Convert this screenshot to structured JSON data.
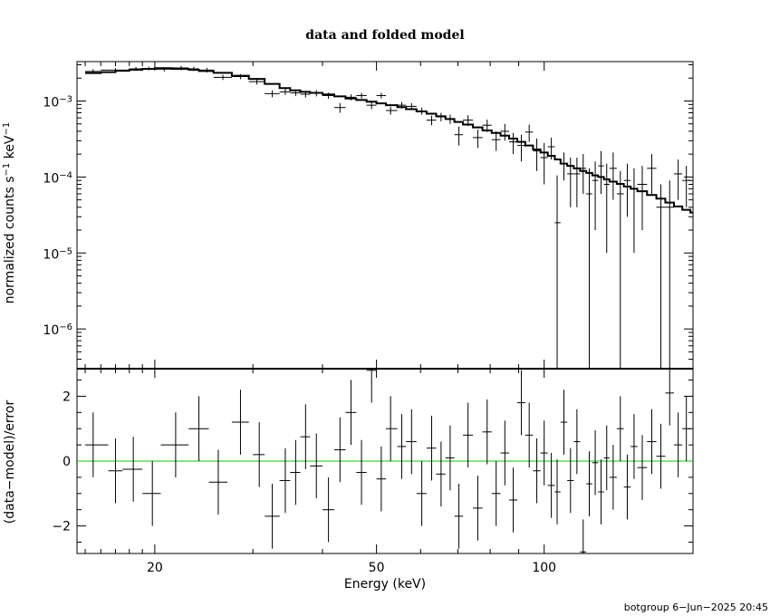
{
  "chart_data": [
    {
      "type": "scatter",
      "title": "data and folded model",
      "xlabel": "Energy (keV)",
      "ylabel_main": "normalized counts s",
      "ylabel_sup1": "−1",
      "ylabel_mid": " keV",
      "ylabel_sup2": "−1",
      "x_scale": "log",
      "y_scale": "log",
      "xlim": [
        14.5,
        185
      ],
      "ylim": [
        3e-07,
        0.0033
      ],
      "y_ticks": [
        {
          "label": "10",
          "exp": "−3",
          "value": 0.001
        },
        {
          "label": "10",
          "exp": "−4",
          "value": 0.0001
        },
        {
          "label": "10",
          "exp": "−5",
          "value": 1e-05
        },
        {
          "label": "10",
          "exp": "−6",
          "value": 1e-06
        }
      ],
      "series": [
        {
          "color": "#000000",
          "points": [
            [
              15.5,
              0.00245,
              0.00017,
              15,
              16
            ],
            [
              17,
              0.00255,
              0.00015,
              16,
              18
            ],
            [
              18.5,
              0.00265,
              0.00015,
              18,
              19
            ],
            [
              19.5,
              0.00268,
              0.00015,
              19,
              20
            ],
            [
              20.8,
              0.00262,
              0.00017,
              20,
              21.5
            ],
            [
              22.3,
              0.00272,
              0.00018,
              21.5,
              23
            ],
            [
              23.5,
              0.00265,
              0.00018,
              23,
              24
            ],
            [
              24.8,
              0.00255,
              0.00018,
              24,
              25.5
            ],
            [
              26.5,
              0.00205,
              0.00016,
              25.5,
              27.5
            ],
            [
              28.5,
              0.0021,
              0.00016,
              27.5,
              29.5
            ],
            [
              30.5,
              0.0018,
              0.00015,
              29.5,
              31.5
            ],
            [
              32.5,
              0.00125,
              0.00013,
              31.5,
              33.5
            ],
            [
              34.3,
              0.00132,
              0.00012,
              33.5,
              35
            ],
            [
              35.8,
              0.00128,
              0.00012,
              35,
              36.5
            ],
            [
              37.3,
              0.00123,
              0.00012,
              36.5,
              38
            ],
            [
              39,
              0.00127,
              0.00012,
              38,
              40
            ],
            [
              41,
              0.00118,
              0.00011,
              40,
              42
            ],
            [
              43,
              0.00082,
              0.00012,
              42,
              44
            ],
            [
              45,
              0.00112,
              0.0001,
              44,
              46
            ],
            [
              47,
              0.00118,
              0.0001,
              46,
              48
            ],
            [
              49,
              0.00088,
              0.0001,
              48,
              50
            ],
            [
              51,
              0.00118,
              0.0001,
              50,
              52
            ],
            [
              53,
              0.00075,
              9e-05,
              52,
              54.5
            ],
            [
              55.5,
              0.00088,
              9e-05,
              54.5,
              56.5
            ],
            [
              57.8,
              0.00085,
              9e-05,
              56.5,
              59
            ],
            [
              60.3,
              0.00074,
              8e-05,
              59,
              61.5
            ],
            [
              62.8,
              0.00056,
              8e-05,
              61.5,
              64
            ],
            [
              65.3,
              0.00062,
              8e-05,
              64,
              66.5
            ],
            [
              67.8,
              0.00058,
              8e-05,
              66.5,
              69
            ],
            [
              70.3,
              0.00036,
              0.0001,
              69,
              71.5
            ],
            [
              73,
              0.00056,
              9e-05,
              71.5,
              74.5
            ],
            [
              76,
              0.00033,
              9e-05,
              74.5,
              77.5
            ],
            [
              79,
              0.00048,
              9e-05,
              77.5,
              80.5
            ],
            [
              82,
              0.00031,
              9e-05,
              80.5,
              83.5
            ],
            [
              85,
              0.0004,
              0.0001,
              83.5,
              86.5
            ],
            [
              88,
              0.00029,
              9e-05,
              86.5,
              89.5
            ],
            [
              91,
              0.00026,
              0.0001,
              89.5,
              92.5
            ],
            [
              94,
              0.00039,
              0.0001,
              92.5,
              95.5
            ],
            [
              97,
              0.00022,
              0.0001,
              95.5,
              98.5
            ],
            [
              100,
              0.00018,
              0.0001,
              98.5,
              101.5
            ],
            [
              103,
              0.00025,
              8e-05,
              101.5,
              104.5
            ],
            [
              105.5,
              2.5e-05,
              8e-05,
              104.5,
              107
            ],
            [
              108.5,
              0.00015,
              6e-05,
              107,
              110
            ],
            [
              111.5,
              0.00011,
              7e-05,
              110,
              113
            ],
            [
              114.5,
              0.00011,
              7e-05,
              113,
              116
            ],
            [
              117.5,
              0.00013,
              7e-05,
              116,
              119
            ],
            [
              120.5,
              6e-05,
              7e-05,
              119,
              122
            ],
            [
              123.5,
              9e-05,
              7e-05,
              122,
              125
            ],
            [
              126.5,
              0.00014,
              8e-05,
              125,
              128
            ],
            [
              129.5,
              8e-05,
              7e-05,
              128,
              131
            ],
            [
              133,
              0.00013,
              8e-05,
              131,
              135
            ],
            [
              137,
              6e-05,
              6e-05,
              135,
              139
            ],
            [
              141,
              9e-05,
              6e-05,
              139,
              143
            ],
            [
              145,
              7e-05,
              6e-05,
              143,
              147
            ],
            [
              150,
              8e-05,
              6e-05,
              147,
              153
            ],
            [
              156,
              0.00013,
              7e-05,
              153,
              159
            ],
            [
              162,
              4e-05,
              4e-05,
              159,
              165
            ],
            [
              168,
              4e-05,
              5e-05,
              165,
              171
            ],
            [
              174,
              0.00011,
              6e-05,
              171,
              177
            ],
            [
              180,
              9e-05,
              5e-05,
              177,
              183
            ]
          ]
        }
      ],
      "model_steps": [
        [
          15,
          0.00233
        ],
        [
          16,
          0.0024
        ],
        [
          17,
          0.0025
        ],
        [
          18,
          0.00258
        ],
        [
          19,
          0.00265
        ],
        [
          20,
          0.0027
        ],
        [
          21.5,
          0.00265
        ],
        [
          23,
          0.00258
        ],
        [
          24,
          0.00248
        ],
        [
          25.5,
          0.00235
        ],
        [
          27.5,
          0.00215
        ],
        [
          29.5,
          0.00195
        ],
        [
          31.5,
          0.00168
        ],
        [
          33.5,
          0.00148
        ],
        [
          35,
          0.00138
        ],
        [
          36.5,
          0.00132
        ],
        [
          38,
          0.00128
        ],
        [
          40,
          0.00122
        ],
        [
          42,
          0.00115
        ],
        [
          44,
          0.00108
        ],
        [
          46,
          0.00103
        ],
        [
          48,
          0.00098
        ],
        [
          50,
          0.00093
        ],
        [
          52,
          0.00088
        ],
        [
          54.5,
          0.00083
        ],
        [
          56.5,
          0.00078
        ],
        [
          59,
          0.00073
        ],
        [
          61.5,
          0.00068
        ],
        [
          64,
          0.00063
        ],
        [
          66.5,
          0.00058
        ],
        [
          69,
          0.00053
        ],
        [
          71.5,
          0.00049
        ],
        [
          74.5,
          0.00045
        ],
        [
          77.5,
          0.00041
        ],
        [
          80.5,
          0.00038
        ],
        [
          83.5,
          0.00035
        ],
        [
          86.5,
          0.00032
        ],
        [
          89.5,
          0.00029
        ],
        [
          92.5,
          0.00026
        ],
        [
          95.5,
          0.00023
        ],
        [
          98.5,
          0.00021
        ],
        [
          101.5,
          0.00019
        ],
        [
          104.5,
          0.00017
        ],
        [
          107,
          0.00015
        ],
        [
          110,
          0.00014
        ],
        [
          113,
          0.00013
        ],
        [
          116,
          0.00012
        ],
        [
          119,
          0.000113
        ],
        [
          122,
          0.000105
        ],
        [
          125,
          0.0001
        ],
        [
          128,
          9.3e-05
        ],
        [
          131,
          8.7e-05
        ],
        [
          135,
          8.1e-05
        ],
        [
          139,
          7.5e-05
        ],
        [
          143,
          7e-05
        ],
        [
          147,
          6.5e-05
        ],
        [
          153,
          5.8e-05
        ],
        [
          159,
          5.2e-05
        ],
        [
          165,
          4.6e-05
        ],
        [
          171,
          4.1e-05
        ],
        [
          177,
          3.7e-05
        ],
        [
          183,
          3.4e-05
        ],
        [
          185,
          3.4e-05
        ]
      ]
    },
    {
      "type": "scatter",
      "xlabel": "Energy (keV)",
      "ylabel": "(data−model)/error",
      "x_scale": "log",
      "xlim": [
        14.5,
        185
      ],
      "ylim": [
        -2.85,
        2.85
      ],
      "x_ticks": [
        {
          "label": "20",
          "value": 20
        },
        {
          "label": "50",
          "value": 50
        },
        {
          "label": "100",
          "value": 100
        }
      ],
      "y_ticks": [
        {
          "label": "2",
          "value": 2
        },
        {
          "label": "0",
          "value": 0
        },
        {
          "label": "−2",
          "value": -2
        }
      ],
      "zero_line_color": "#00cc00",
      "points": [
        [
          15.5,
          0.5,
          1,
          15,
          16.5
        ],
        [
          17,
          -0.3,
          1,
          16.5,
          17.5
        ],
        [
          18.3,
          -0.25,
          1,
          17.5,
          19
        ],
        [
          19.8,
          -1.0,
          1,
          19,
          20.5
        ],
        [
          21.8,
          0.5,
          1,
          20.5,
          23
        ],
        [
          24,
          1.0,
          1,
          23,
          25
        ],
        [
          26,
          -0.65,
          1,
          25,
          27
        ],
        [
          28.5,
          1.2,
          1,
          27.5,
          29.5
        ],
        [
          30.8,
          0.2,
          1,
          30,
          31.5
        ],
        [
          32.5,
          -1.7,
          1,
          31.5,
          33.5
        ],
        [
          34.3,
          -0.6,
          1,
          33.5,
          35
        ],
        [
          35.8,
          -0.35,
          1,
          35,
          36.5
        ],
        [
          37.3,
          0.75,
          1,
          36.5,
          38
        ],
        [
          39,
          -0.15,
          1,
          38,
          40
        ],
        [
          41,
          -1.5,
          1,
          40,
          42
        ],
        [
          43,
          0.35,
          1,
          42,
          44
        ],
        [
          45,
          1.5,
          1,
          44,
          46
        ],
        [
          47,
          -0.35,
          1,
          46,
          48
        ],
        [
          49,
          2.8,
          1,
          48,
          50
        ],
        [
          51,
          -0.55,
          1,
          50,
          52
        ],
        [
          53,
          1.0,
          1,
          52,
          54.5
        ],
        [
          55.5,
          0.45,
          1,
          54.5,
          56.5
        ],
        [
          57.8,
          0.6,
          1,
          56.5,
          59
        ],
        [
          60.3,
          -1.0,
          1,
          59,
          61.5
        ],
        [
          62.8,
          0.4,
          1,
          61.5,
          64
        ],
        [
          65.3,
          -0.4,
          1,
          64,
          66.5
        ],
        [
          67.8,
          0.1,
          1,
          66.5,
          69
        ],
        [
          70.3,
          -1.7,
          1,
          69,
          71.5
        ],
        [
          73,
          0.8,
          1,
          71.5,
          74.5
        ],
        [
          76,
          -1.45,
          1,
          74.5,
          77.5
        ],
        [
          79,
          0.9,
          1,
          77.5,
          80.5
        ],
        [
          82,
          -1.0,
          1,
          80.5,
          83.5
        ],
        [
          85,
          0.25,
          1,
          83.5,
          86.5
        ],
        [
          88,
          -1.2,
          1,
          86.5,
          89.5
        ],
        [
          91,
          1.8,
          1,
          89.5,
          92.5
        ],
        [
          94,
          0.8,
          1,
          92.5,
          95.5
        ],
        [
          97,
          -0.3,
          1,
          95.5,
          98.5
        ],
        [
          100,
          0.25,
          1,
          98.5,
          101.5
        ],
        [
          103,
          -0.75,
          1,
          101.5,
          104.5
        ],
        [
          105.5,
          -0.95,
          1,
          104.5,
          107
        ],
        [
          108.5,
          1.2,
          1,
          107,
          110
        ],
        [
          111.5,
          -0.6,
          1,
          110,
          113
        ],
        [
          114.5,
          0.6,
          1,
          113,
          116
        ],
        [
          117.5,
          -2.8,
          1,
          116,
          119
        ],
        [
          120.5,
          -0.7,
          1,
          119,
          122
        ],
        [
          123.5,
          -0.05,
          1,
          122,
          125
        ],
        [
          126.5,
          -0.95,
          1,
          125,
          128
        ],
        [
          129.5,
          0.1,
          1,
          128,
          131
        ],
        [
          133,
          -0.5,
          1,
          131,
          135
        ],
        [
          137,
          1.0,
          1,
          135,
          139
        ],
        [
          141,
          -0.8,
          1,
          139,
          143
        ],
        [
          145,
          0.45,
          1,
          143,
          147
        ],
        [
          150,
          -0.2,
          1,
          147,
          153
        ],
        [
          156,
          0.6,
          1,
          153,
          159
        ],
        [
          162,
          0.15,
          1,
          159,
          165
        ],
        [
          168,
          2.1,
          1,
          165,
          171
        ],
        [
          174,
          0.5,
          1,
          171,
          177
        ],
        [
          180,
          1.0,
          1,
          177,
          183
        ]
      ]
    }
  ],
  "footer": "botgroup  6−Jun−2025 20:45"
}
